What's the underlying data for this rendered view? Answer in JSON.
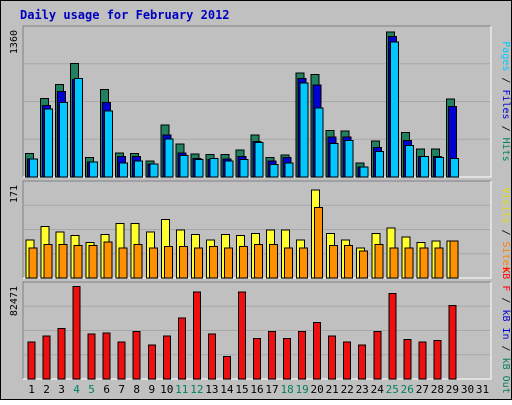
{
  "chart_data": {
    "type": "bar",
    "title": "Daily usage for February 2012",
    "x": [
      "1",
      "2",
      "3",
      "4",
      "5",
      "6",
      "7",
      "8",
      "9",
      "10",
      "11",
      "12",
      "13",
      "14",
      "15",
      "16",
      "17",
      "18",
      "19",
      "20",
      "21",
      "22",
      "23",
      "24",
      "25",
      "26",
      "27",
      "28",
      "29",
      "30",
      "31"
    ],
    "weekend_days": [
      "4",
      "5",
      "11",
      "12",
      "18",
      "19",
      "25",
      "26"
    ],
    "panels": [
      {
        "id": "pages-files-hits",
        "ylabel_max": "1360",
        "ylim": [
          0,
          1360
        ],
        "legend": [
          {
            "text": "Pages",
            "color": "#00c8ff"
          },
          {
            "text": " / ",
            "color": "#000000"
          },
          {
            "text": "Files",
            "color": "#0000d0"
          },
          {
            "text": " / ",
            "color": "#000000"
          },
          {
            "text": "Hits",
            "color": "#008060"
          }
        ],
        "series": [
          {
            "name": "Hits",
            "color": "#208060",
            "values": [
              218,
              725,
              855,
              1050,
              180,
              810,
              220,
              218,
              150,
              480,
              305,
              215,
              210,
              208,
              250,
              390,
              180,
              205,
              960,
              950,
              430,
              425,
              130,
              335,
              1340,
              410,
              260,
              260,
              720,
              0,
              0
            ]
          },
          {
            "name": "Files",
            "color": "#0000d0",
            "values": [
              168,
              660,
              790,
              900,
              140,
              690,
              190,
              190,
              120,
              390,
              220,
              172,
              160,
              168,
              190,
              330,
              150,
              180,
              910,
              850,
              370,
              370,
              93,
              275,
              1300,
              340,
              190,
              190,
              650,
              0,
              0
            ]
          },
          {
            "name": "Pages",
            "color": "#00c8ff",
            "values": [
              168,
              630,
              690,
              910,
              140,
              610,
              130,
              150,
              120,
              350,
              200,
              160,
              170,
              150,
              160,
              320,
              115,
              130,
              870,
              640,
              310,
              340,
              93,
              235,
              1250,
              290,
              190,
              180,
              170,
              0,
              0
            ]
          }
        ]
      },
      {
        "id": "visits-sites",
        "ylabel_max": "171",
        "ylim": [
          0,
          171
        ],
        "legend": [
          {
            "text": "Visits",
            "color": "#e0e000"
          },
          {
            "text": " / ",
            "color": "#000000"
          },
          {
            "text": "Sites",
            "color": "#ff8000"
          }
        ],
        "series": [
          {
            "name": "Visits",
            "color": "#ffff30",
            "values": [
              70,
              95,
              85,
              78,
              65,
              80,
              100,
              100,
              85,
              108,
              88,
              80,
              70,
              80,
              78,
              82,
              88,
              88,
              70,
              162,
              82,
              70,
              55,
              82,
              92,
              75,
              65,
              68,
              68,
              0,
              0
            ]
          },
          {
            "name": "Sites",
            "color": "#ff9000",
            "values": [
              55,
              62,
              62,
              60,
              60,
              66,
              55,
              62,
              55,
              58,
              58,
              55,
              58,
              55,
              58,
              62,
              62,
              55,
              55,
              130,
              60,
              60,
              50,
              62,
              55,
              55,
              55,
              55,
              68,
              0,
              0
            ]
          }
        ]
      },
      {
        "id": "kb",
        "ylabel_max": "82471",
        "ylim": [
          0,
          82471
        ],
        "legend": [
          {
            "text": "KB F",
            "color": "#ff0000"
          },
          {
            "text": " / ",
            "color": "#000000"
          },
          {
            "text": "kB In",
            "color": "#0000d0"
          },
          {
            "text": " / ",
            "color": "#000000"
          },
          {
            "text": "kB Out",
            "color": "#008060"
          }
        ],
        "series": [
          {
            "name": "KB F",
            "color": "#ee1010",
            "values": [
              33000,
              38000,
              45000,
              82000,
              40000,
              41000,
              33000,
              42000,
              30000,
              38000,
              54000,
              77000,
              40000,
              20000,
              77000,
              36000,
              42000,
              36000,
              42000,
              50000,
              38000,
              33000,
              30000,
              42000,
              76000,
              35000,
              33000,
              34000,
              65000,
              0,
              0
            ]
          }
        ]
      }
    ]
  }
}
